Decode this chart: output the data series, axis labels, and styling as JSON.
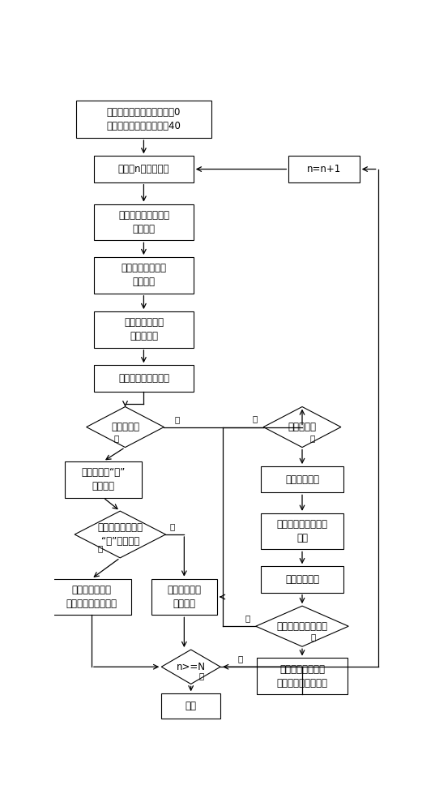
{
  "bg_color": "#ffffff",
  "box_edge_color": "#000000",
  "box_fill_color": "#ffffff",
  "arrow_color": "#000000",
  "text_color": "#000000",
  "font_size": 8.5,
  "texts": {
    "start": "设定白天统计量，初始値为0\n设定动态阈値，初始値为40",
    "get_frame": "获取第n帧路口图像",
    "nn1": "n=n+1",
    "get_target": "获得交通灯目标所在\n目标区域",
    "expand": "扩展目标区域形成\n约束区域",
    "binarize": "获得约束区域的\n二値化图像",
    "feature": "二値化图像特征提取",
    "is_night": "是否为夜晒",
    "detect_bright": "检测状态为“亮”\n的信号灯",
    "is_bright": "是否检测到状态为\n“亮”的信号灯",
    "adj_signal": "根据信号灯位置\n调整目标区域的位置",
    "keep_pos": "保持目标区域\n位置不变",
    "is_daytime": "是否为白天",
    "update_thresh": "更新动态阈値",
    "rebinarize": "根据动态阈値重新二\n値化",
    "black_detect": "黑色框架检测",
    "is_black": "是否检测到黑色框架",
    "adj_black": "根据黑色框架位置\n调整目标区域的位置",
    "n_geq_N": "n>=N",
    "end": "结束"
  }
}
